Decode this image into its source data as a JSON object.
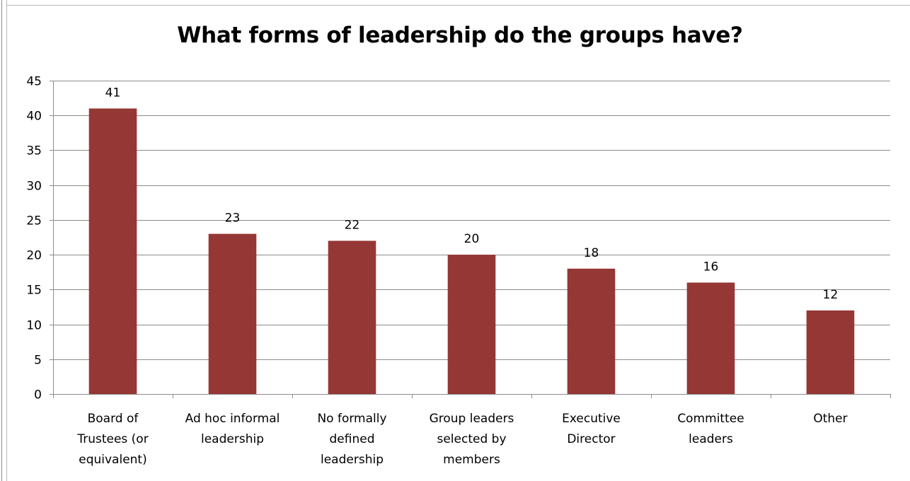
{
  "chart_data": {
    "type": "bar",
    "title": "What forms of leadership do the groups have?",
    "categories": [
      [
        "Board of",
        "Trustees (or",
        "equivalent)"
      ],
      [
        "Ad hoc informal",
        "leadership"
      ],
      [
        "No formally",
        "defined",
        "leadership"
      ],
      [
        "Group leaders",
        "selected by",
        "members"
      ],
      [
        "Executive",
        "Director"
      ],
      [
        "Committee",
        "leaders"
      ],
      [
        "Other"
      ]
    ],
    "values": [
      41,
      23,
      22,
      20,
      18,
      16,
      12
    ],
    "ylim": [
      0,
      45
    ],
    "yticks": [
      0,
      5,
      10,
      15,
      20,
      25,
      30,
      35,
      40,
      45
    ],
    "grid": true,
    "legend": "none",
    "bar_color": "#953735"
  }
}
